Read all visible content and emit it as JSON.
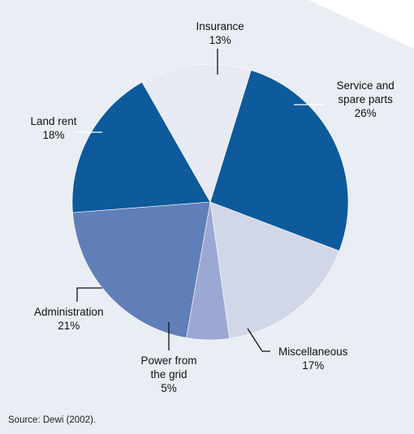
{
  "chart_data": {
    "type": "pie",
    "start_at": "top, clockwise",
    "slices": [
      {
        "label_lines": [
          "Service and",
          "spare parts"
        ],
        "value": 26,
        "value_text": "26%",
        "color": "#0d5a9c"
      },
      {
        "label_lines": [
          "Miscellaneous"
        ],
        "value": 17,
        "value_text": "17%",
        "color": "#d2d7e8"
      },
      {
        "label_lines": [
          "Power from",
          "the grid"
        ],
        "value": 5,
        "value_text": "5%",
        "color": "#9ba8d3"
      },
      {
        "label_lines": [
          "Administration"
        ],
        "value": 21,
        "value_text": "21%",
        "color": "#607fb8"
      },
      {
        "label_lines": [
          "Land rent"
        ],
        "value": 18,
        "value_text": "18%",
        "color": "#0d5a9c"
      },
      {
        "label_lines": [
          "Insurance"
        ],
        "value": 13,
        "value_text": "13%",
        "color": "#e8eaf3"
      }
    ]
  },
  "source": "Source: Dewi (2002)."
}
